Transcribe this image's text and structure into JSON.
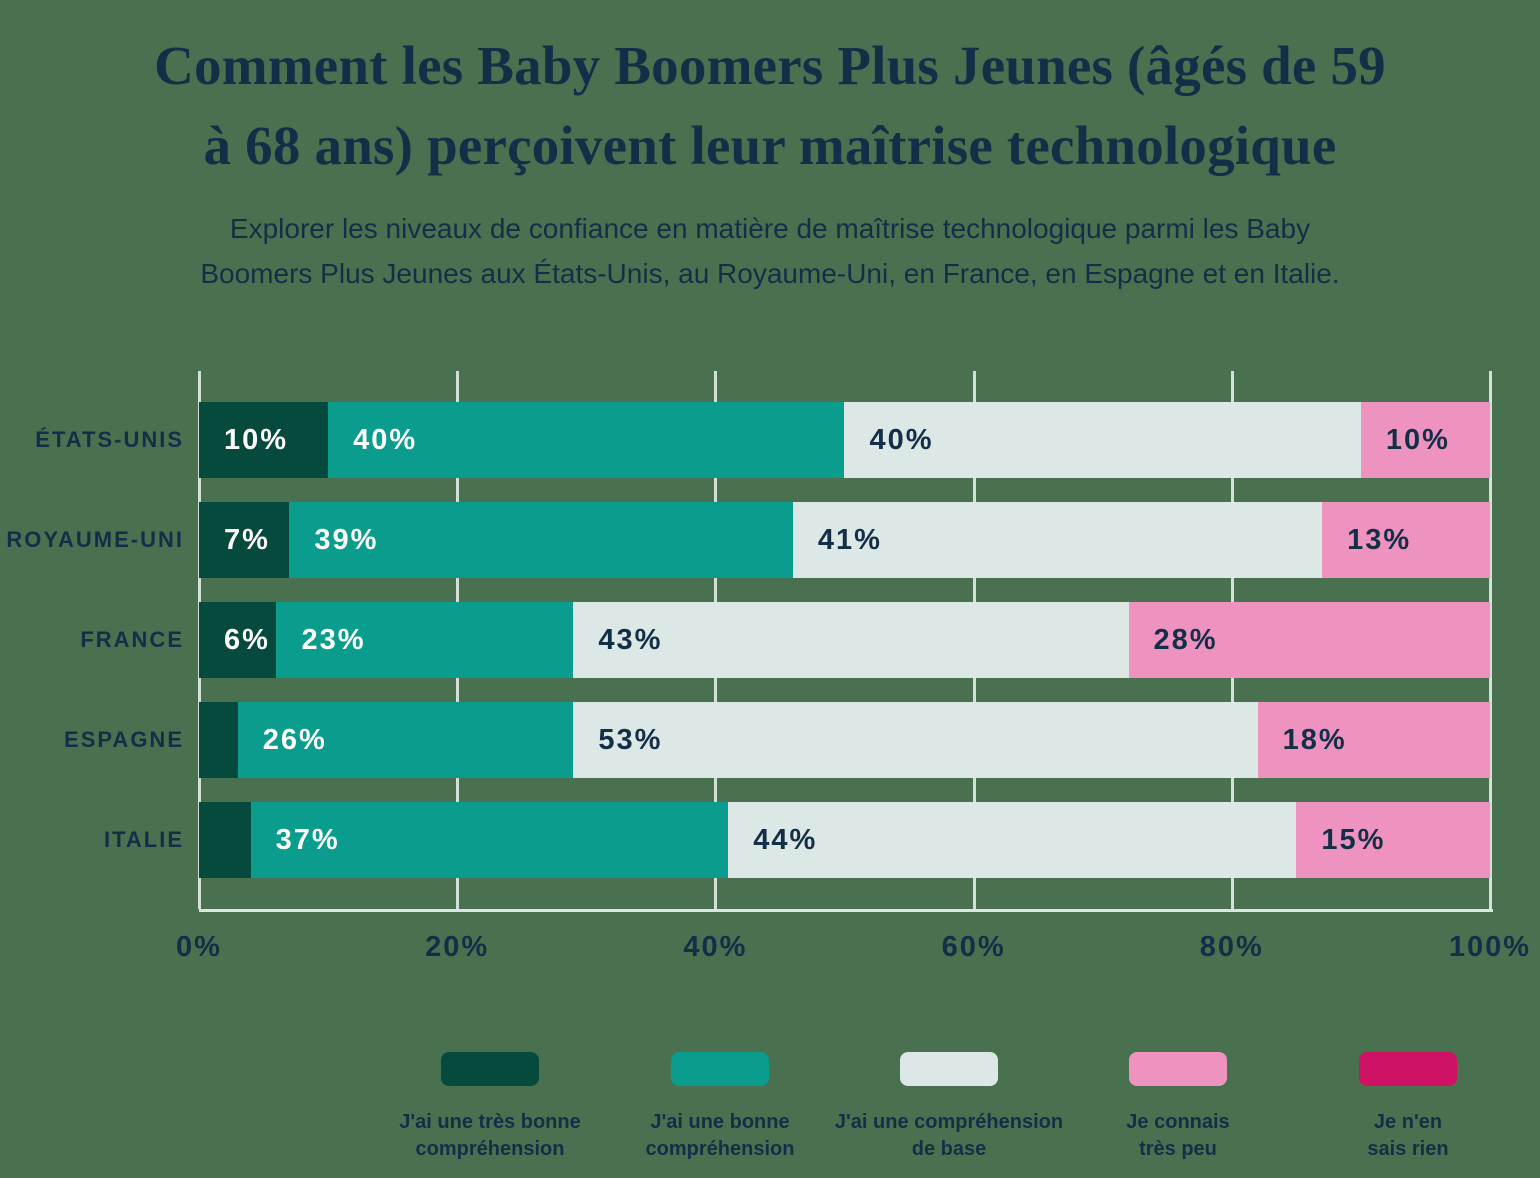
{
  "title": {
    "line1": "Comment les Baby Boomers Plus Jeunes (âgés de 59",
    "line2": "à 68 ans) perçoivent leur maîtrise technologique"
  },
  "subtitle": {
    "line1": "Explorer les niveaux de confiance en matière de maîtrise technologique parmi les Baby",
    "line2": "Boomers Plus Jeunes aux États-Unis, au Royaume-Uni, en France, en Espagne et en Italie."
  },
  "colors": {
    "background": "#497150",
    "text_navy": "#132f47",
    "grid_line": "#e9f1ee",
    "label_on_dark": "#ffffff",
    "label_on_light": "#132f47"
  },
  "chart_data": {
    "type": "bar",
    "orientation": "horizontal",
    "stacked": true,
    "grid": true,
    "xlim": [
      0,
      100
    ],
    "x_tick_labels": [
      "0%",
      "20%",
      "40%",
      "60%",
      "80%",
      "100%"
    ],
    "x_tick_values": [
      0,
      20,
      40,
      60,
      80,
      100
    ],
    "categories": [
      "ÉTATS-UNIS",
      "ROYAUME-UNI",
      "FRANCE",
      "ESPAGNE",
      "ITALIE"
    ],
    "series": [
      {
        "name": "J'ai une très bonne compréhension",
        "color": "#064a3e",
        "label_color": "#ffffff",
        "values": [
          10,
          7,
          6,
          3,
          4
        ],
        "bar_labels": [
          "10%",
          "7%",
          "6%",
          "",
          ""
        ]
      },
      {
        "name": "J'ai une bonne compréhension",
        "color": "#0a9c8c",
        "label_color": "#ffffff",
        "values": [
          40,
          39,
          23,
          26,
          37
        ],
        "bar_labels": [
          "40%",
          "39%",
          "23%",
          "26%",
          "37%"
        ]
      },
      {
        "name": "J'ai une compréhension de base",
        "color": "#dce8e5",
        "label_color": "#132f47",
        "values": [
          40,
          41,
          43,
          53,
          44
        ],
        "bar_labels": [
          "40%",
          "41%",
          "43%",
          "53%",
          "44%"
        ]
      },
      {
        "name": "Je connais très peu",
        "color": "#ee93c0",
        "label_color": "#132f47",
        "values": [
          10,
          13,
          28,
          18,
          15
        ],
        "bar_labels": [
          "10%",
          "13%",
          "28%",
          "18%",
          "15%"
        ]
      },
      {
        "name": "Je n'en sais rien",
        "color": "#ce1264",
        "label_color": "#ffffff",
        "values": [
          0,
          0,
          0,
          0,
          0
        ],
        "bar_labels": [
          "",
          "",
          "",
          "",
          ""
        ]
      }
    ],
    "legend_position": "bottom"
  },
  "legend": {
    "items": [
      {
        "lines": [
          "J'ai une très bonne",
          "compréhension"
        ],
        "color": "#064a3e"
      },
      {
        "lines": [
          "J'ai une bonne",
          "compréhension"
        ],
        "color": "#0a9c8c"
      },
      {
        "lines": [
          "J'ai une compréhension",
          "de base"
        ],
        "color": "#dce8e5"
      },
      {
        "lines": [
          "Je connais",
          "très peu"
        ],
        "color": "#ee93c0"
      },
      {
        "lines": [
          "Je n'en",
          "sais rien"
        ],
        "color": "#ce1264"
      }
    ]
  }
}
